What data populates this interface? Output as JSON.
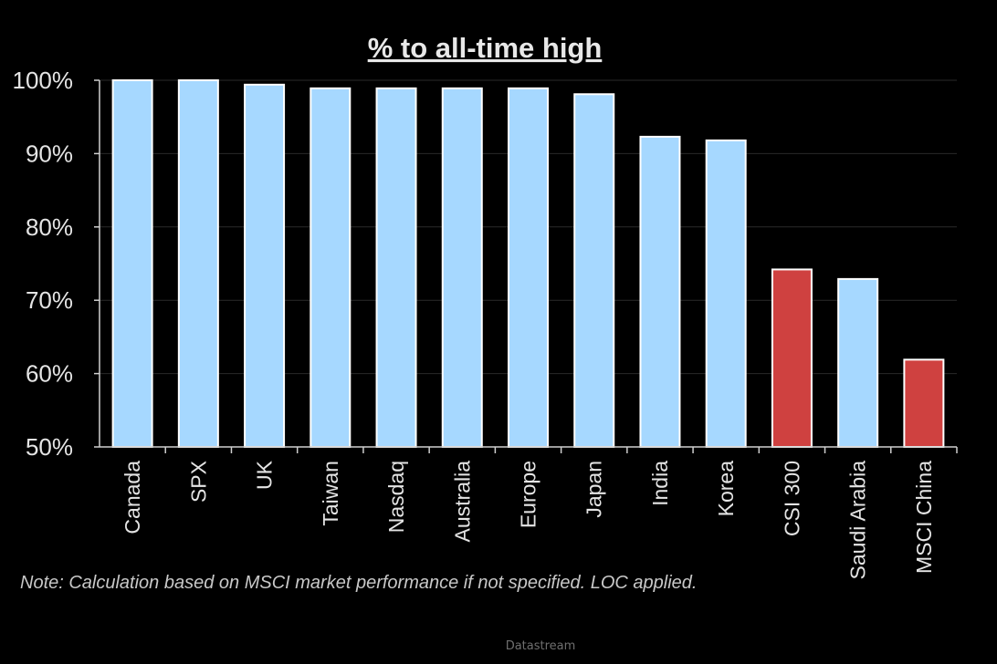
{
  "chart_data": {
    "type": "bar",
    "title": "% to all-time  high",
    "categories": [
      "Canada",
      "SPX",
      "UK",
      "Taiwan",
      "Nasdaq",
      "Australia",
      "Europe",
      "Japan",
      "India",
      "Korea",
      "CSI 300",
      "Saudi Arabia",
      "MSCI China"
    ],
    "values": [
      100,
      100,
      99.4,
      98.9,
      98.9,
      98.9,
      98.9,
      98.1,
      92.3,
      91.8,
      74.2,
      72.9,
      61.9
    ],
    "ylim": [
      50,
      100
    ],
    "yticks": [
      "50%",
      "60%",
      "70%",
      "80%",
      "90%",
      "100%"
    ],
    "ytick_values": [
      50,
      60,
      70,
      80,
      90,
      100
    ],
    "xlabel": "",
    "ylabel": "",
    "grid": true,
    "colors": {
      "default": "#a6d8ff",
      "highlight": "#cf4140",
      "background": "#000000",
      "gridline": "#2a2a2a"
    },
    "highlighted": [
      "CSI 300",
      "MSCI China"
    ]
  },
  "note": "Note: Calculation based on MSCI market performance if not specified. LOC applied.",
  "source": "Datastream"
}
